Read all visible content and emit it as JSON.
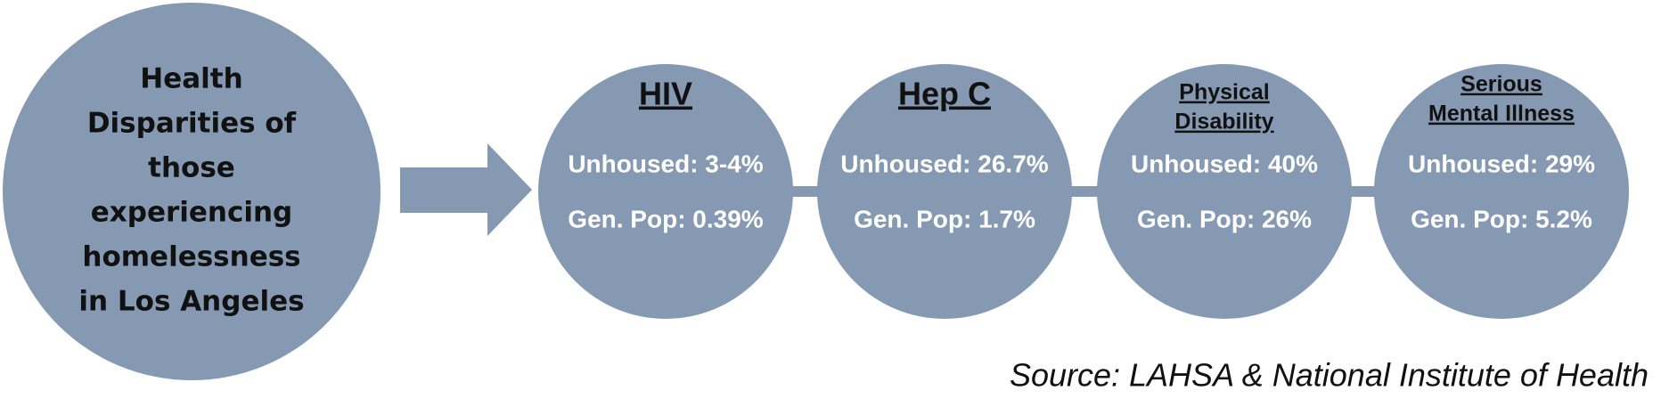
{
  "title_lines": [
    "Health",
    "Disparities of",
    "those",
    "experiencing",
    "homelessness",
    "in Los Angeles"
  ],
  "nodes": [
    {
      "title_lines": [
        "HIV"
      ],
      "unhoused": "Unhoused: 3-4%",
      "gen_pop": "Gen. Pop: 0.39%"
    },
    {
      "title_lines": [
        "Hep C"
      ],
      "unhoused": "Unhoused: 26.7%",
      "gen_pop": "Gen. Pop: 1.7%"
    },
    {
      "title_lines": [
        "Physical",
        "Disability"
      ],
      "unhoused": "Unhoused: 40%",
      "gen_pop": "Gen. Pop: 26%"
    },
    {
      "title_lines": [
        "Serious",
        "Mental Illness"
      ],
      "unhoused": "Unhoused: 29%",
      "gen_pop": "Gen. Pop: 5.2%"
    }
  ],
  "source": "Source: LAHSA & National Institute of Health"
}
